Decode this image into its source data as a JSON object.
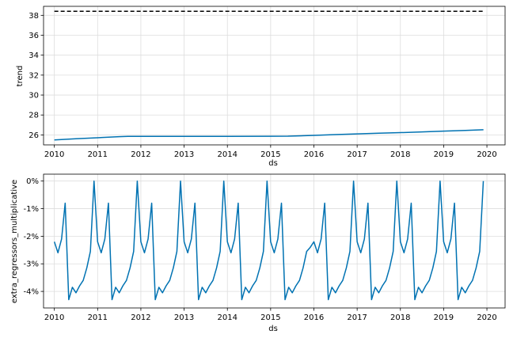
{
  "chart_data": [
    {
      "type": "line",
      "title": "",
      "xlabel": "ds",
      "ylabel": "trend",
      "xlim": [
        2009.75,
        2020.42
      ],
      "ylim": [
        25.0,
        38.9
      ],
      "grid": true,
      "x_ticks": [
        2010,
        2011,
        2012,
        2013,
        2014,
        2015,
        2016,
        2017,
        2018,
        2019,
        2020
      ],
      "x_tick_labels": [
        "2010",
        "2011",
        "2012",
        "2013",
        "2014",
        "2015",
        "2016",
        "2017",
        "2018",
        "2019",
        "2020"
      ],
      "y_ticks": [
        26,
        28,
        30,
        32,
        34,
        36,
        38
      ],
      "y_tick_labels": [
        "26",
        "28",
        "30",
        "32",
        "34",
        "36",
        "38"
      ],
      "series": [
        {
          "style": "solid",
          "color": "#0072B2",
          "x": [
            2010.0,
            2010.5,
            2011.0,
            2011.5,
            2011.7,
            2012.0,
            2013.0,
            2014.0,
            2015.0,
            2015.4,
            2016.0,
            2016.5,
            2017.0,
            2017.5,
            2018.0,
            2018.5,
            2019.0,
            2019.5,
            2019.92
          ],
          "y": [
            25.5,
            25.62,
            25.72,
            25.82,
            25.85,
            25.85,
            25.85,
            25.85,
            25.86,
            25.87,
            25.95,
            26.03,
            26.1,
            26.17,
            26.23,
            26.3,
            26.38,
            26.45,
            26.52
          ]
        },
        {
          "style": "dashed",
          "color": "#000000",
          "x": [
            2010.0,
            2019.92
          ],
          "y": [
            38.4,
            38.4
          ]
        }
      ]
    },
    {
      "type": "line",
      "title": "",
      "xlabel": "ds",
      "ylabel": "extra_regressors_multiplicative",
      "xlim": [
        2009.75,
        2020.42
      ],
      "ylim": [
        -4.6,
        0.25
      ],
      "grid": true,
      "x_ticks": [
        2010,
        2011,
        2012,
        2013,
        2014,
        2015,
        2016,
        2017,
        2018,
        2019,
        2020
      ],
      "x_tick_labels": [
        "2010",
        "2011",
        "2012",
        "2013",
        "2014",
        "2015",
        "2016",
        "2017",
        "2018",
        "2019",
        "2020"
      ],
      "y_ticks": [
        0,
        -1,
        -2,
        -3,
        -4
      ],
      "y_tick_labels": [
        "0%",
        "-1%",
        "-2%",
        "-3%",
        "-4%"
      ],
      "series": [
        {
          "style": "solid",
          "color": "#0072B2",
          "x": [
            2010.0,
            2010.083,
            2010.167,
            2010.25,
            2010.333,
            2010.417,
            2010.5,
            2010.583,
            2010.667,
            2010.75,
            2010.833,
            2010.917,
            2011.0,
            2011.083,
            2011.167,
            2011.25,
            2011.333,
            2011.417,
            2011.5,
            2011.583,
            2011.667,
            2011.75,
            2011.833,
            2011.917,
            2012.0,
            2012.083,
            2012.167,
            2012.25,
            2012.333,
            2012.417,
            2012.5,
            2012.583,
            2012.667,
            2012.75,
            2012.833,
            2012.917,
            2013.0,
            2013.083,
            2013.167,
            2013.25,
            2013.333,
            2013.417,
            2013.5,
            2013.583,
            2013.667,
            2013.75,
            2013.833,
            2013.917,
            2014.0,
            2014.083,
            2014.167,
            2014.25,
            2014.333,
            2014.417,
            2014.5,
            2014.583,
            2014.667,
            2014.75,
            2014.833,
            2014.917,
            2015.0,
            2015.083,
            2015.167,
            2015.25,
            2015.333,
            2015.417,
            2015.5,
            2015.583,
            2015.667,
            2015.75,
            2015.833,
            2015.917,
            2016.0,
            2016.083,
            2016.167,
            2016.25,
            2016.333,
            2016.417,
            2016.5,
            2016.583,
            2016.667,
            2016.75,
            2016.833,
            2016.917,
            2017.0,
            2017.083,
            2017.167,
            2017.25,
            2017.333,
            2017.417,
            2017.5,
            2017.583,
            2017.667,
            2017.75,
            2017.833,
            2017.917,
            2018.0,
            2018.083,
            2018.167,
            2018.25,
            2018.333,
            2018.417,
            2018.5,
            2018.583,
            2018.667,
            2018.75,
            2018.833,
            2018.917,
            2019.0,
            2019.083,
            2019.167,
            2019.25,
            2019.333,
            2019.417,
            2019.5,
            2019.583,
            2019.667,
            2019.75,
            2019.833,
            2019.917
          ],
          "y": [
            -2.2,
            -2.6,
            -2.1,
            -0.8,
            -4.3,
            -3.85,
            -4.05,
            -3.8,
            -3.6,
            -3.15,
            -2.55,
            0.0,
            -2.2,
            -2.6,
            -2.1,
            -0.8,
            -4.3,
            -3.85,
            -4.05,
            -3.8,
            -3.6,
            -3.15,
            -2.55,
            0.0,
            -2.2,
            -2.6,
            -2.1,
            -0.8,
            -4.3,
            -3.85,
            -4.05,
            -3.8,
            -3.6,
            -3.15,
            -2.55,
            0.0,
            -2.2,
            -2.6,
            -2.1,
            -0.8,
            -4.3,
            -3.85,
            -4.05,
            -3.8,
            -3.6,
            -3.15,
            -2.55,
            0.0,
            -2.2,
            -2.6,
            -2.1,
            -0.8,
            -4.3,
            -3.85,
            -4.05,
            -3.8,
            -3.6,
            -3.15,
            -2.55,
            0.0,
            -2.2,
            -2.6,
            -2.1,
            -0.8,
            -4.3,
            -3.85,
            -4.05,
            -3.8,
            -3.6,
            -3.15,
            -2.55,
            -2.4,
            -2.2,
            -2.6,
            -2.1,
            -0.8,
            -4.3,
            -3.85,
            -4.05,
            -3.8,
            -3.6,
            -3.15,
            -2.55,
            0.0,
            -2.2,
            -2.6,
            -2.1,
            -0.8,
            -4.3,
            -3.85,
            -4.05,
            -3.8,
            -3.6,
            -3.15,
            -2.55,
            0.0,
            -2.2,
            -2.6,
            -2.1,
            -0.8,
            -4.3,
            -3.85,
            -4.05,
            -3.8,
            -3.6,
            -3.15,
            -2.55,
            0.0,
            -2.2,
            -2.6,
            -2.1,
            -0.8,
            -4.3,
            -3.85,
            -4.05,
            -3.8,
            -3.6,
            -3.15,
            -2.55,
            0.0
          ]
        }
      ]
    }
  ]
}
